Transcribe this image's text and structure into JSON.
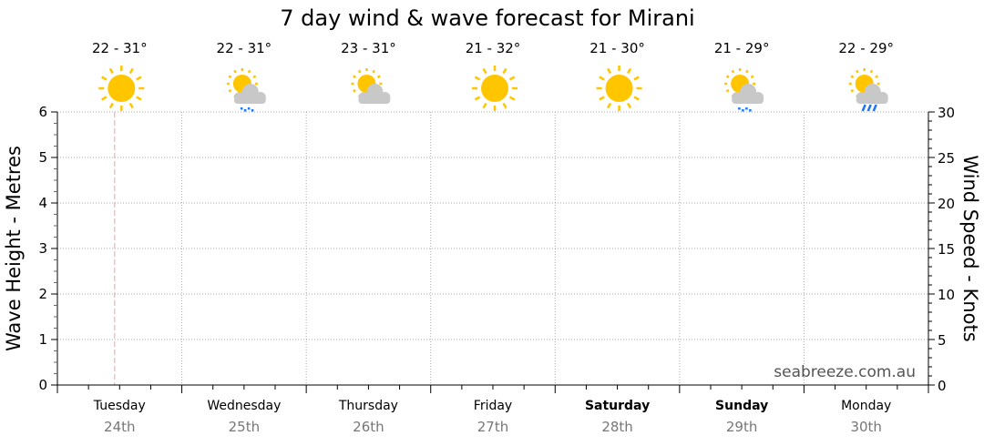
{
  "chart_data": {
    "type": "line",
    "title": "7 day wind & wave forecast for Mirani",
    "ylabel": "Wave Height - Metres",
    "y2label": "Wind Speed - Knots",
    "ylim": [
      0,
      6
    ],
    "y2lim": [
      0,
      30
    ],
    "yticks": [
      "0",
      "1",
      "2",
      "3",
      "4",
      "5",
      "6"
    ],
    "y2ticks": [
      "0",
      "5",
      "10",
      "15",
      "20",
      "25",
      "30"
    ],
    "grid": true,
    "series": [],
    "watermark": "seabreeze.com.au",
    "days": [
      {
        "name": "Tuesday",
        "date": "24th",
        "temp": "22 - 31°",
        "icon": "sunny-icon",
        "bold": false
      },
      {
        "name": "Wednesday",
        "date": "25th",
        "temp": "22 - 31°",
        "icon": "partly-cloudy-drizzle-icon",
        "bold": false
      },
      {
        "name": "Thursday",
        "date": "26th",
        "temp": "23 - 31°",
        "icon": "partly-cloudy-icon",
        "bold": false
      },
      {
        "name": "Friday",
        "date": "27th",
        "temp": "21 - 32°",
        "icon": "sunny-icon",
        "bold": false
      },
      {
        "name": "Saturday",
        "date": "28th",
        "temp": "21 - 30°",
        "icon": "sunny-icon",
        "bold": true
      },
      {
        "name": "Sunday",
        "date": "29th",
        "temp": "21 - 29°",
        "icon": "partly-cloudy-drizzle-icon",
        "bold": true
      },
      {
        "name": "Monday",
        "date": "30th",
        "temp": "22 - 29°",
        "icon": "partly-cloudy-rain-icon",
        "bold": false
      }
    ],
    "current_time_fraction_of_first_day": 0.46
  },
  "colors": {
    "sun": "#ffc600",
    "cloud": "#c8c8c8",
    "rain": "#1a73ff",
    "now_line": "#f0a0a8",
    "grid": "#aaaaaa"
  }
}
